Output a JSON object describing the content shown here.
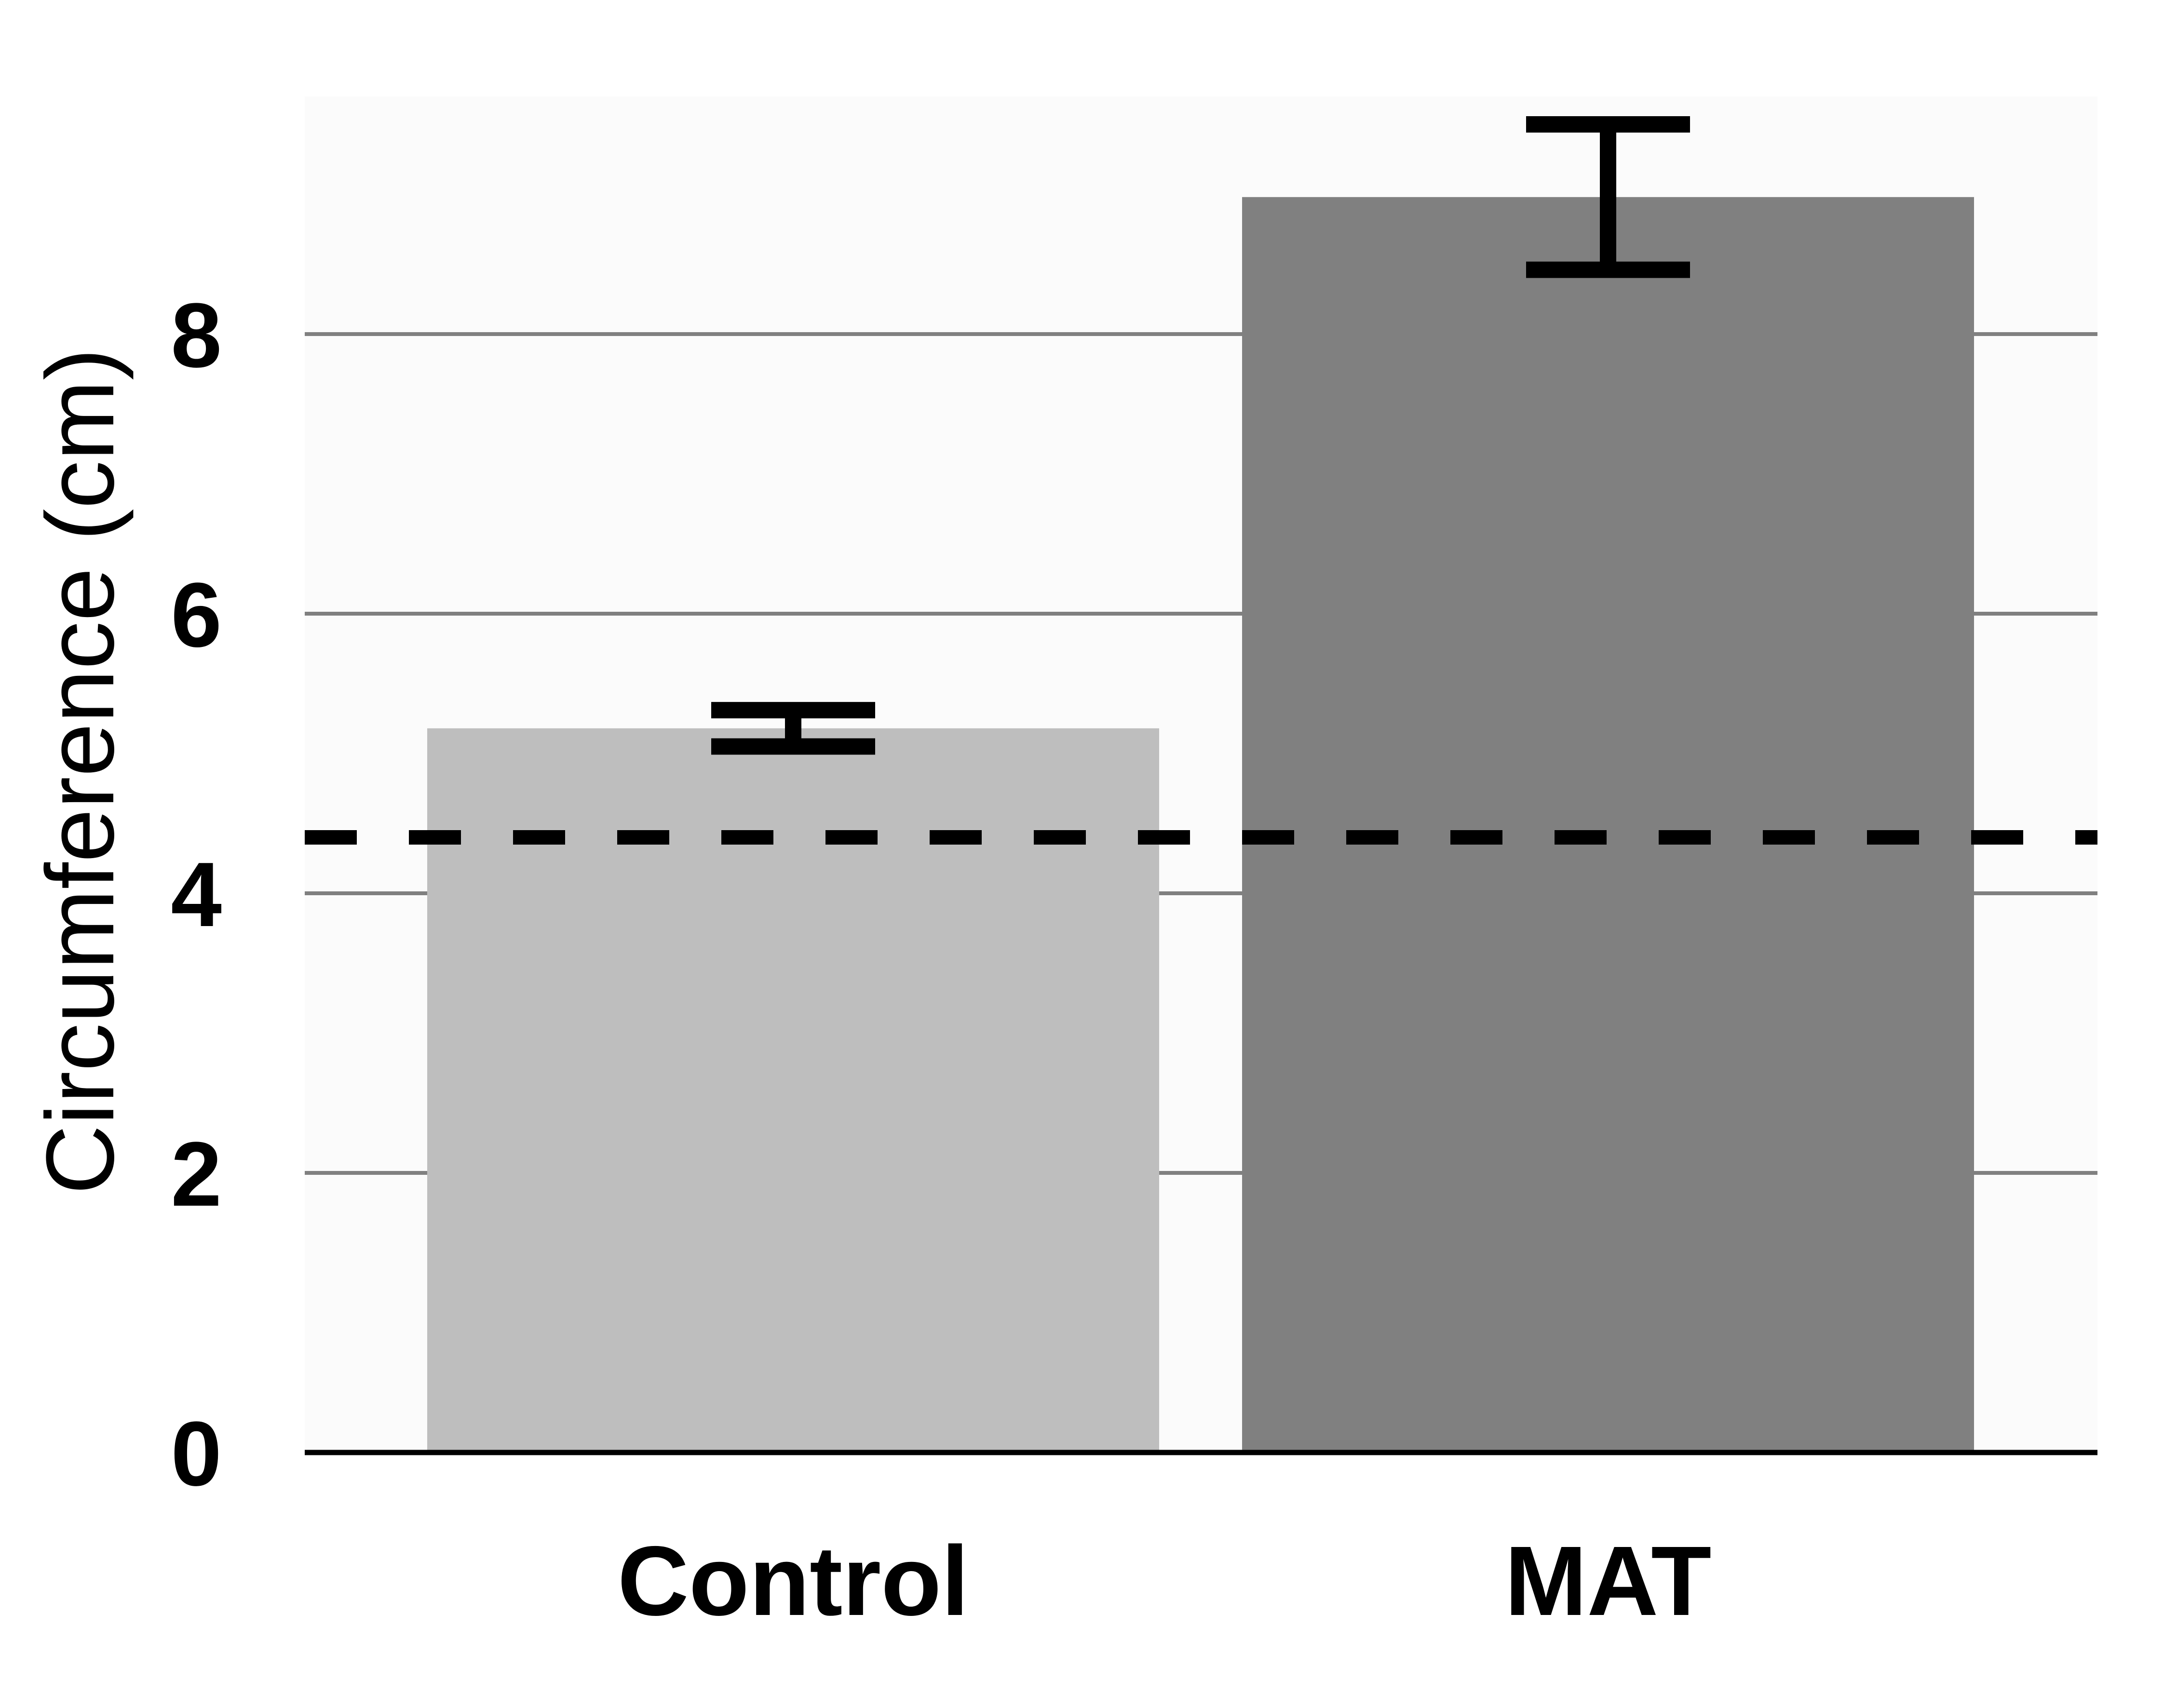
{
  "chart_data": {
    "type": "bar",
    "title": "",
    "xlabel": "",
    "ylabel": "Circumference (cm)",
    "categories": [
      "Control",
      "MAT"
    ],
    "values": [
      5.18,
      8.98
    ],
    "error": [
      0.13,
      0.52
    ],
    "bar_colors": [
      "#bebebe",
      "#808080"
    ],
    "ylim": [
      0,
      9.7
    ],
    "yticks": [
      0,
      2,
      4,
      6,
      8
    ],
    "ytick_labels": [
      "0",
      "2",
      "4",
      "6",
      "8"
    ],
    "grid": true,
    "reference_line": {
      "y": 4.4,
      "style": "dashed"
    },
    "plot_background": "#fbfbfb",
    "grid_color": "#808080",
    "axis_color": "#000000"
  }
}
